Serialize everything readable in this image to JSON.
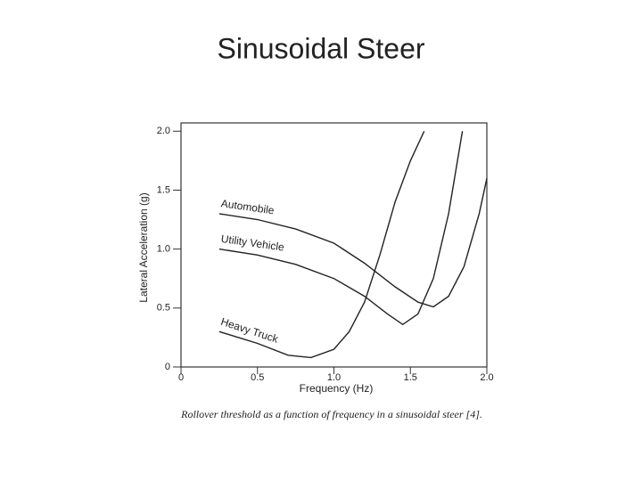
{
  "chart_data": {
    "type": "line",
    "title": "Sinusoidal Steer",
    "caption": "Rollover threshold as a function of frequency in a sinusoidal steer [4].",
    "x_label": "Frequency (Hz)",
    "y_label": "Lateral Acceleration (g)",
    "xlim": [
      0,
      2
    ],
    "ylim": [
      0,
      2.07
    ],
    "xticks": [
      0,
      0.5,
      {
        "value": 1,
        "label": "1.0"
      },
      1.5,
      {
        "value": 2,
        "label": "2.0"
      }
    ],
    "yticks": [
      0,
      0.5,
      {
        "value": 1,
        "label": "1.0"
      },
      1.5,
      {
        "value": 2,
        "label": "2.0"
      }
    ],
    "series": [
      {
        "name": "Automobile",
        "color": "#222222",
        "x": [
          0.25,
          0.5,
          0.75,
          1.0,
          1.2,
          1.4,
          1.55,
          1.65,
          1.75,
          1.85,
          1.95,
          2.0
        ],
        "values": [
          1.3,
          1.25,
          1.17,
          1.05,
          0.88,
          0.68,
          0.55,
          0.51,
          0.6,
          0.85,
          1.3,
          1.6
        ]
      },
      {
        "name": "Utility Vehicle",
        "color": "#222222",
        "x": [
          0.25,
          0.5,
          0.75,
          1.0,
          1.2,
          1.35,
          1.45,
          1.55,
          1.65,
          1.75,
          1.84
        ],
        "values": [
          1.0,
          0.95,
          0.87,
          0.75,
          0.6,
          0.45,
          0.36,
          0.45,
          0.75,
          1.3,
          2.0
        ]
      },
      {
        "name": "Heavy Truck",
        "color": "#222222",
        "x": [
          0.25,
          0.5,
          0.7,
          0.85,
          1.0,
          1.1,
          1.2,
          1.3,
          1.4,
          1.5,
          1.59
        ],
        "values": [
          0.3,
          0.2,
          0.1,
          0.08,
          0.15,
          0.3,
          0.55,
          0.95,
          1.4,
          1.75,
          2.0
        ]
      }
    ]
  }
}
